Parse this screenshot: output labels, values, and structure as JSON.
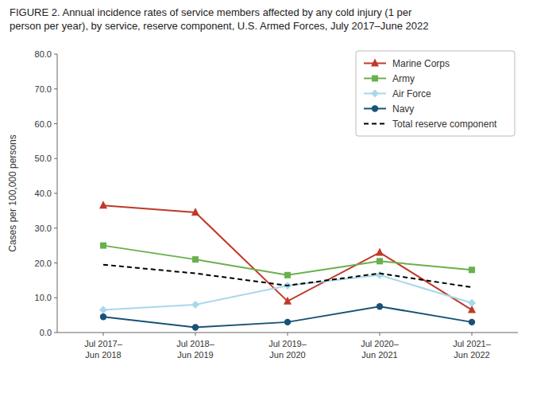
{
  "chart_data": {
    "type": "line",
    "title": "FIGURE 2. Annual incidence rates of service members affected by any cold injury (1 per\nperson per year), by service, reserve component, U.S. Armed Forces, July 2017–June 2022",
    "categories": [
      "Jul 2017–\nJun 2018",
      "Jul 2018–\nJun 2019",
      "Jul 2019–\nJun 2020",
      "Jul 2020–\nJun 2021",
      "Jul 2021–\nJun 2022"
    ],
    "series": [
      {
        "name": "Marine Corps",
        "color": "#c0392b",
        "marker": "triangle",
        "line_style": "solid",
        "values": [
          36.5,
          34.5,
          9.0,
          23.0,
          6.5
        ]
      },
      {
        "name": "Army",
        "color": "#6ab04c",
        "marker": "square",
        "line_style": "solid",
        "values": [
          25.0,
          21.0,
          16.5,
          20.5,
          18.0
        ]
      },
      {
        "name": "Air Force",
        "color": "#a8d8ea",
        "marker": "diamond",
        "line_style": "solid",
        "values": [
          6.5,
          8.0,
          13.5,
          16.5,
          8.5
        ]
      },
      {
        "name": "Navy",
        "color": "#1a5276",
        "marker": "circle",
        "line_style": "solid",
        "values": [
          4.5,
          1.5,
          3.0,
          7.5,
          3.0
        ]
      },
      {
        "name": "Total reserve component",
        "color": "#000000",
        "marker": "none",
        "line_style": "dashed",
        "values": [
          19.5,
          17.0,
          13.5,
          17.0,
          13.0
        ]
      }
    ],
    "ylabel": "Cases per 100,000 persons",
    "ylim": [
      0,
      80
    ],
    "yticks": [
      {
        "value": 0,
        "label": "0.0"
      },
      {
        "value": 10,
        "label": "10.0"
      },
      {
        "value": 20,
        "label": "20.0"
      },
      {
        "value": 30,
        "label": "30.0"
      },
      {
        "value": 40,
        "label": "40.0"
      },
      {
        "value": 50,
        "label": "50.0"
      },
      {
        "value": 60,
        "label": "60.0"
      },
      {
        "value": 70,
        "label": "70.0"
      },
      {
        "value": 80,
        "label": "80.0"
      }
    ],
    "grid": false,
    "legend": "upper right"
  }
}
